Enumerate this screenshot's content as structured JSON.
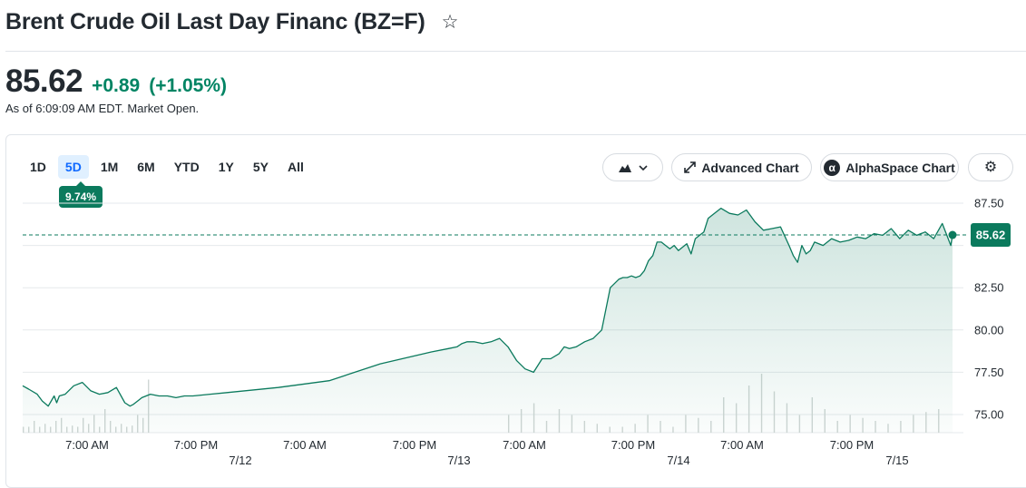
{
  "header": {
    "title": "Brent Crude Oil Last Day Financ (BZ=F)",
    "star_icon": "star-outline-icon"
  },
  "quote": {
    "price": "85.62",
    "change": "+0.89",
    "change_percent": "(+1.05%)",
    "as_of": "As of 6:09:09 AM EDT. Market Open.",
    "up_color": "#008463"
  },
  "ranges": {
    "items": [
      "1D",
      "5D",
      "1M",
      "6M",
      "YTD",
      "1Y",
      "5Y",
      "All"
    ],
    "selected": "5D",
    "selected_change": "9.74%"
  },
  "toolbar": {
    "chart_type_icon": "mountain-chart-icon",
    "advanced_chart_label": "Advanced Chart",
    "alphaspace_label": "AlphaSpace Chart",
    "alphaspace_glyph": "α",
    "settings_icon": "gear-icon"
  },
  "chart_data": {
    "type": "area",
    "title": "",
    "xlabel": "",
    "ylabel": "",
    "ylim": [
      74.2,
      88.3
    ],
    "y_ticks": [
      "87.50",
      "82.50",
      "80.00",
      "77.50",
      "75.00"
    ],
    "x_tick_labels": [
      "7:00 AM",
      "7:00 PM",
      "7:00 AM",
      "7:00 PM",
      "7:00 AM",
      "7:00 PM",
      "7:00 AM",
      "7:00 PM"
    ],
    "date_labels": [
      "7/12",
      "7/13",
      "7/14",
      "7/15"
    ],
    "reference_line": 85.62,
    "current_price_label": "85.62",
    "line_color": "#0b7a5d",
    "grid": "horizontal",
    "series": [
      {
        "x": [
          0,
          0.7,
          1.7,
          2.3,
          3.0,
          3.7,
          4.0,
          4.3,
          5.0,
          6.0,
          7.0,
          8.0,
          9.0,
          10.0,
          11.0,
          12.0,
          12.6,
          13.0,
          13.5,
          14.0,
          15.0,
          16.0,
          17.0,
          18.0,
          19.0,
          20.0,
          22.0,
          24.0,
          30.0,
          36.0,
          42.0,
          48.0,
          50.0,
          51.0,
          51.6,
          52.2,
          53.0,
          54.0,
          55.0,
          56.0,
          57.0,
          58.0,
          59.0,
          60.0,
          61.0,
          62.0,
          63.0,
          63.6,
          64.2,
          65.0,
          66.0,
          67.0,
          68.0,
          69.0,
          70.0,
          70.5,
          71.0,
          71.5,
          72.0,
          72.5,
          73.0,
          73.5,
          74.0,
          74.5,
          75.0,
          75.5,
          76.0,
          76.5,
          77.0,
          77.5,
          78.0,
          78.5,
          79.0,
          79.5,
          80.0,
          80.5,
          81.0,
          82.0,
          83.0,
          84.0,
          85.0,
          86.0,
          87.0,
          88.0,
          89.0,
          90.0,
          90.5,
          91.0,
          91.5,
          92.0,
          92.5,
          93.0,
          94.0,
          95.0,
          96.0,
          97.0,
          98.0,
          99.0,
          100.0,
          101.0,
          102.0,
          103.0,
          104.0,
          105.0,
          106.0,
          107.0,
          108.0,
          109.0,
          109.2
        ],
        "values": [
          76.7,
          76.5,
          76.2,
          75.8,
          75.5,
          76.1,
          75.7,
          76.1,
          76.2,
          76.7,
          76.9,
          76.4,
          76.2,
          76.3,
          76.6,
          75.7,
          75.5,
          75.6,
          75.8,
          76.0,
          76.2,
          76.1,
          76.1,
          76.0,
          76.1,
          76.1,
          76.2,
          76.3,
          76.6,
          77.0,
          78.0,
          78.7,
          78.9,
          79.0,
          79.2,
          79.3,
          79.3,
          79.2,
          79.3,
          79.5,
          79.0,
          78.2,
          77.7,
          77.5,
          78.3,
          78.3,
          78.6,
          79.0,
          78.9,
          79.0,
          79.3,
          79.5,
          80.0,
          82.5,
          83.0,
          83.1,
          83.1,
          83.2,
          83.1,
          83.2,
          83.5,
          84.1,
          84.4,
          85.2,
          85.2,
          85.0,
          84.8,
          85.0,
          84.7,
          84.9,
          85.1,
          84.5,
          85.4,
          85.6,
          85.8,
          86.6,
          86.8,
          87.2,
          86.9,
          86.8,
          87.1,
          86.4,
          85.9,
          86.0,
          86.1,
          85.0,
          84.4,
          84.0,
          85.0,
          84.5,
          84.7,
          85.2,
          85.0,
          85.4,
          85.2,
          85.3,
          85.5,
          85.4,
          85.7,
          85.6,
          86.0,
          85.4,
          85.9,
          85.6,
          85.8,
          85.4,
          86.3,
          85.0,
          85.62
        ]
      }
    ],
    "volume_bars": [
      0.1,
      0.1,
      0.2,
      0.1,
      0.15,
      0.1,
      0.2,
      0.25,
      0.1,
      0.12,
      0.1,
      0.25,
      0.15,
      0.3,
      0.1,
      0.4,
      0.2,
      0.1,
      0.15,
      0.1,
      0.12,
      0.3,
      0.25,
      0.9,
      0.3,
      0.4,
      0.5,
      0.2,
      0.4,
      0.3,
      0.2,
      0.15,
      0.1,
      0.1,
      0.15,
      0.3,
      0.2,
      0.1,
      0.3,
      0.25,
      0.2,
      0.6,
      0.5,
      0.8,
      1.0,
      0.7,
      0.5,
      0.3,
      0.6,
      0.4,
      0.2,
      0.3,
      0.25,
      0.2,
      0.15,
      0.2,
      0.3,
      0.35,
      0.4
    ]
  }
}
